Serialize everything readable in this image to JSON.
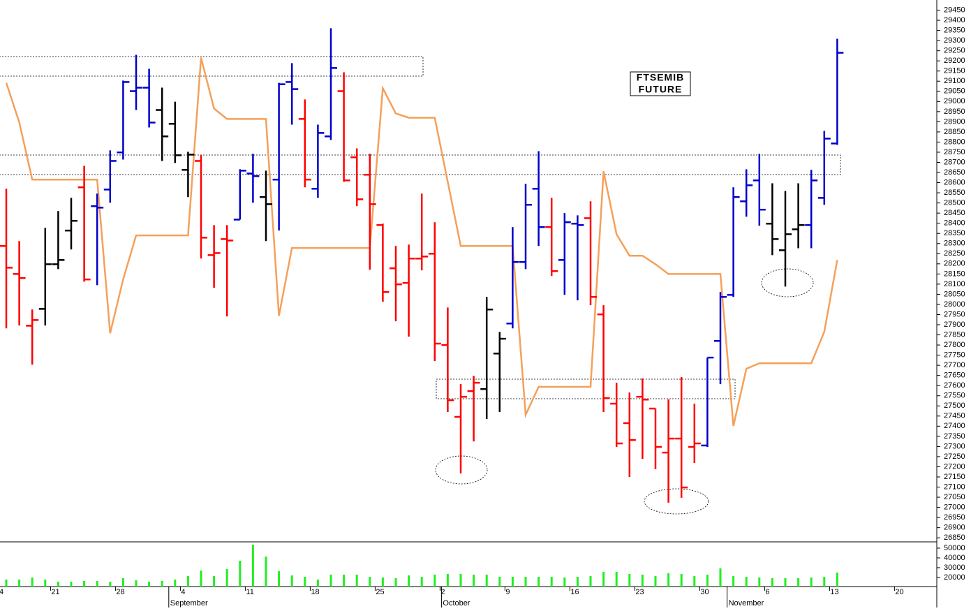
{
  "chart_data": {
    "type": "ohlc",
    "annotation": [
      "FTSEMIB",
      "FUTURE"
    ],
    "categories": [
      "4",
      null,
      null,
      null,
      "21",
      null,
      null,
      null,
      null,
      "28",
      null,
      null,
      null,
      null,
      "4",
      null,
      null,
      null,
      null,
      "11",
      null,
      null,
      null,
      null,
      "18",
      null,
      null,
      null,
      null,
      "25",
      null,
      null,
      null,
      null,
      "2",
      null,
      null,
      null,
      null,
      "9",
      null,
      null,
      null,
      null,
      "16",
      null,
      null,
      null,
      null,
      "23",
      null,
      null,
      null,
      null,
      "30",
      null,
      null,
      null,
      null,
      "6",
      null,
      null,
      null,
      null,
      "13",
      null,
      null,
      null,
      null,
      "20"
    ],
    "month_labels": [
      null,
      null,
      null,
      null,
      null,
      null,
      null,
      null,
      null,
      null,
      null,
      null,
      null,
      "September",
      null,
      null,
      null,
      null,
      null,
      null,
      null,
      null,
      null,
      null,
      null,
      null,
      null,
      null,
      null,
      null,
      null,
      null,
      null,
      null,
      "October",
      null,
      null,
      null,
      null,
      null,
      null,
      null,
      null,
      null,
      null,
      null,
      null,
      null,
      null,
      null,
      null,
      null,
      null,
      null,
      null,
      null,
      "November",
      null,
      null,
      null,
      null,
      null,
      null,
      null,
      null,
      null,
      null,
      null,
      null,
      null
    ],
    "open": [
      28288,
      28150,
      27895,
      27978,
      28198,
      28364,
      28577,
      28484,
      28566,
      28749,
      29051,
      29068,
      28958,
      28890,
      28663,
      28707,
      28243,
      28322,
      28418,
      28645,
      28529,
      28615,
      29096,
      28914,
      28570,
      28828,
      29051,
      28725,
      28639,
      28391,
      28178,
      28106,
      28226,
      28250,
      27800,
      27446,
      27573,
      27583,
      27758,
      27906,
      28209,
      28570,
      28381,
      28219,
      28398,
      28425,
      27951,
      27511,
      27415,
      27545,
      27487,
      27270,
      27339,
      27298,
      27305,
      27820,
      28047,
      28508,
      28611,
      28398,
      28267,
      28370,
      28391,
      28525,
      28793,
      null,
      null,
      null,
      null,
      null
    ],
    "high": [
      28570,
      28312,
      27975,
      28377,
      28460,
      28525,
      28683,
      28546,
      28759,
      29103,
      29230,
      29161,
      29068,
      28999,
      28752,
      28735,
      28391,
      28391,
      28666,
      28742,
      28659,
      29092,
      29189,
      29010,
      28886,
      29361,
      29144,
      28769,
      28742,
      28398,
      28288,
      28295,
      28546,
      28405,
      27985,
      27607,
      27648,
      28037,
      27865,
      28381,
      28594,
      28755,
      28525,
      28450,
      28439,
      28508,
      27996,
      27614,
      27566,
      27635,
      27487,
      27532,
      27642,
      27511,
      27738,
      28061,
      28577,
      28666,
      28742,
      28597,
      28559,
      28597,
      28663,
      28855,
      29309,
      null,
      null,
      null,
      null,
      null
    ],
    "low": [
      27882,
      27896,
      27703,
      27896,
      28174,
      28271,
      28112,
      28095,
      28501,
      28714,
      28958,
      28872,
      28707,
      28697,
      28529,
      28226,
      28082,
      27941,
      28418,
      28501,
      28312,
      28364,
      28886,
      28577,
      28525,
      28810,
      28604,
      28484,
      28171,
      28013,
      27917,
      27841,
      28168,
      27721,
      27470,
      27167,
      27325,
      27435,
      27470,
      27882,
      28174,
      28288,
      28140,
      28047,
      28020,
      27996,
      27470,
      27298,
      27150,
      27239,
      27188,
      27023,
      27047,
      27219,
      27298,
      27607,
      28037,
      28432,
      28388,
      28243,
      28088,
      28277,
      28277,
      28491,
      28786,
      null,
      null,
      null,
      null,
      null
    ],
    "close": [
      28181,
      28130,
      27923,
      28198,
      28219,
      28412,
      28123,
      28477,
      28707,
      29096,
      29068,
      28896,
      28828,
      28735,
      28738,
      28329,
      28253,
      28315,
      28659,
      28632,
      28494,
      29085,
      29061,
      28615,
      28845,
      29165,
      28611,
      28518,
      28494,
      28061,
      28099,
      28226,
      28236,
      27807,
      27528,
      27545,
      27614,
      27975,
      27831,
      28209,
      28491,
      28381,
      28164,
      28405,
      28391,
      28037,
      27538,
      27315,
      27332,
      27531,
      27298,
      27339,
      27098,
      27315,
      27738,
      28037,
      28529,
      28587,
      28467,
      28322,
      28346,
      28391,
      28611,
      28817,
      29240,
      null,
      null,
      null,
      null,
      null
    ],
    "bar_colors": [
      "#ff0000",
      "#ff0000",
      "#ff0000",
      "#000000",
      "#000000",
      "#000000",
      "#ff0000",
      "#0000cc",
      "#0000cc",
      "#0000cc",
      "#0000cc",
      "#0000cc",
      "#000000",
      "#000000",
      "#000000",
      "#ff0000",
      "#ff0000",
      "#ff0000",
      "#0000cc",
      "#0000cc",
      "#000000",
      "#0000cc",
      "#0000cc",
      "#ff0000",
      "#0000cc",
      "#0000cc",
      "#ff0000",
      "#ff0000",
      "#ff0000",
      "#ff0000",
      "#ff0000",
      "#ff0000",
      "#ff0000",
      "#ff0000",
      "#ff0000",
      "#ff0000",
      "#ff0000",
      "#000000",
      "#000000",
      "#0000cc",
      "#0000cc",
      "#0000cc",
      "#ff0000",
      "#0000cc",
      "#0000cc",
      "#ff0000",
      "#ff0000",
      "#ff0000",
      "#ff0000",
      "#ff0000",
      "#ff0000",
      "#ff0000",
      "#ff0000",
      "#ff0000",
      "#0000cc",
      "#0000cc",
      "#0000cc",
      "#0000cc",
      "#0000cc",
      "#000000",
      "#000000",
      "#000000",
      "#0000cc",
      "#0000cc",
      "#0000cc",
      null,
      null,
      null,
      null,
      null
    ],
    "line": {
      "color": "#f5a05a",
      "values": [
        29092,
        28897,
        28615,
        28615,
        28615,
        28615,
        28615,
        28615,
        27858,
        28123,
        28340,
        28340,
        28340,
        28340,
        28340,
        29216,
        28965,
        28914,
        28914,
        28914,
        28914,
        27944,
        28278,
        28278,
        28278,
        28278,
        28278,
        28278,
        28278,
        29065,
        28941,
        28920,
        28920,
        28920,
        28604,
        28288,
        28288,
        28288,
        28288,
        28288,
        27456,
        27594,
        27594,
        27594,
        27594,
        27594,
        28656,
        28346,
        28240,
        28240,
        28198,
        28150,
        28150,
        28150,
        28150,
        28150,
        27401,
        27683,
        27710,
        27710,
        27710,
        27710,
        27710,
        27865,
        28219,
        null,
        null,
        null,
        null,
        null
      ]
    },
    "ylim": [
      26830,
      29500
    ],
    "yticks": [
      26850,
      26900,
      26950,
      27000,
      27050,
      27100,
      27150,
      27200,
      27250,
      27300,
      27350,
      27400,
      27450,
      27500,
      27550,
      27600,
      27650,
      27700,
      27750,
      27800,
      27850,
      27900,
      27950,
      28000,
      28050,
      28100,
      28150,
      28200,
      28250,
      28300,
      28350,
      28400,
      28450,
      28500,
      28550,
      28600,
      28650,
      28700,
      28750,
      28800,
      28850,
      28900,
      28950,
      29000,
      29050,
      29100,
      29150,
      29200,
      29250,
      29300,
      29350,
      29400,
      29450
    ],
    "volume": {
      "color": "#22ee22",
      "ylim": [
        10700,
        56400
      ],
      "yticks": [
        20000,
        30000,
        40000,
        50000
      ],
      "values": [
        17900,
        17900,
        20000,
        17900,
        15700,
        15700,
        16400,
        16400,
        15700,
        19300,
        17100,
        15700,
        16400,
        17900,
        21400,
        27100,
        21400,
        28600,
        37100,
        53600,
        41400,
        26400,
        22100,
        20700,
        17900,
        22900,
        22900,
        22900,
        20700,
        20000,
        19300,
        22100,
        20700,
        22900,
        23600,
        23600,
        22900,
        22900,
        20700,
        20700,
        20700,
        20700,
        20700,
        20000,
        20700,
        21400,
        25700,
        25700,
        23600,
        22900,
        21400,
        24300,
        23600,
        21400,
        22900,
        29300,
        21400,
        20700,
        20000,
        19300,
        19300,
        19300,
        20000,
        20700,
        25000,
        null,
        null,
        null,
        null,
        null
      ]
    }
  }
}
